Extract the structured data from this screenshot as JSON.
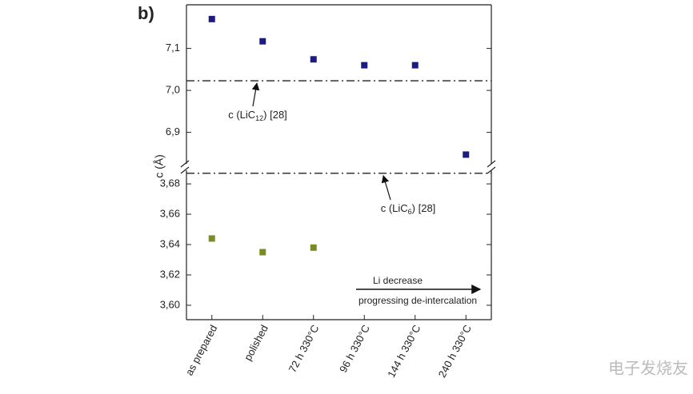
{
  "chart_data": {
    "type": "scatter",
    "panel_label": "b)",
    "y_label": "c (Å)",
    "categories": [
      "as prepared",
      "polished",
      "72 h 330°C",
      "96 h 330°C",
      "144 h 330°C",
      "240 h 330°C"
    ],
    "panels": [
      {
        "ylim": [
          6.825,
          7.204
        ],
        "yticks": [
          {
            "value": 6.9,
            "label": "6,9"
          },
          {
            "value": 7.0,
            "label": "7,0"
          },
          {
            "value": 7.1,
            "label": "7,1"
          }
        ]
      },
      {
        "ylim": [
          3.5905,
          3.689
        ],
        "yticks": [
          {
            "value": 3.6,
            "label": "3,60"
          },
          {
            "value": 3.62,
            "label": "3,62"
          },
          {
            "value": 3.64,
            "label": "3,64"
          },
          {
            "value": 3.66,
            "label": "3,66"
          },
          {
            "value": 3.68,
            "label": "3,68"
          }
        ]
      }
    ],
    "series": [
      {
        "color": "#1c1c80",
        "panel": 0,
        "values": [
          7.17,
          7.117,
          7.074,
          7.06,
          7.06,
          6.847
        ]
      },
      {
        "color": "#7b8a26",
        "panel": 1,
        "values": [
          3.644,
          3.635,
          3.638,
          null,
          null,
          null
        ]
      }
    ],
    "reference_lines": [
      {
        "panel": 0,
        "value": 7.023,
        "label": {
          "text": "c (LiC",
          "sub": "12",
          "tail": ") [28]"
        }
      },
      {
        "panel": 1,
        "value": 3.687,
        "label": {
          "text": "c (LiC",
          "sub": "6",
          "tail": ") [28]"
        }
      }
    ],
    "arrow_annotation": {
      "above": "Li decrease",
      "below": "progressing de-intercalation"
    },
    "watermark": "电子发烧友"
  }
}
